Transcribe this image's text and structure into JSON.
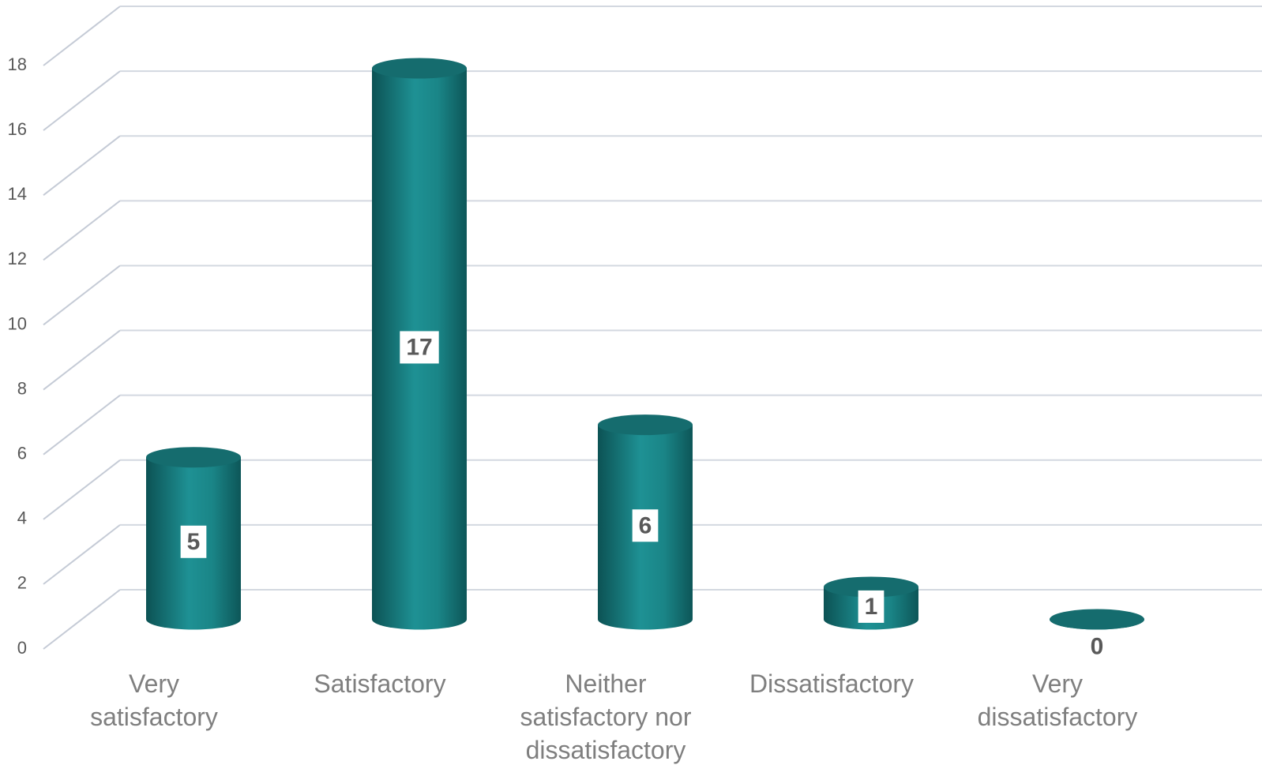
{
  "chart_data": {
    "type": "bar",
    "categories": [
      "Very satisfactory",
      "Satisfactory",
      "Neither satisfactory nor dissatisfactory",
      "Dissatisfactory",
      "Very dissatisfactory"
    ],
    "values": [
      5,
      17,
      6,
      1,
      0
    ],
    "color": "#1a8284",
    "ylim": [
      0,
      18
    ],
    "yticks": [
      0,
      2,
      4,
      6,
      8,
      10,
      12,
      14,
      16,
      18
    ],
    "grid": true
  }
}
